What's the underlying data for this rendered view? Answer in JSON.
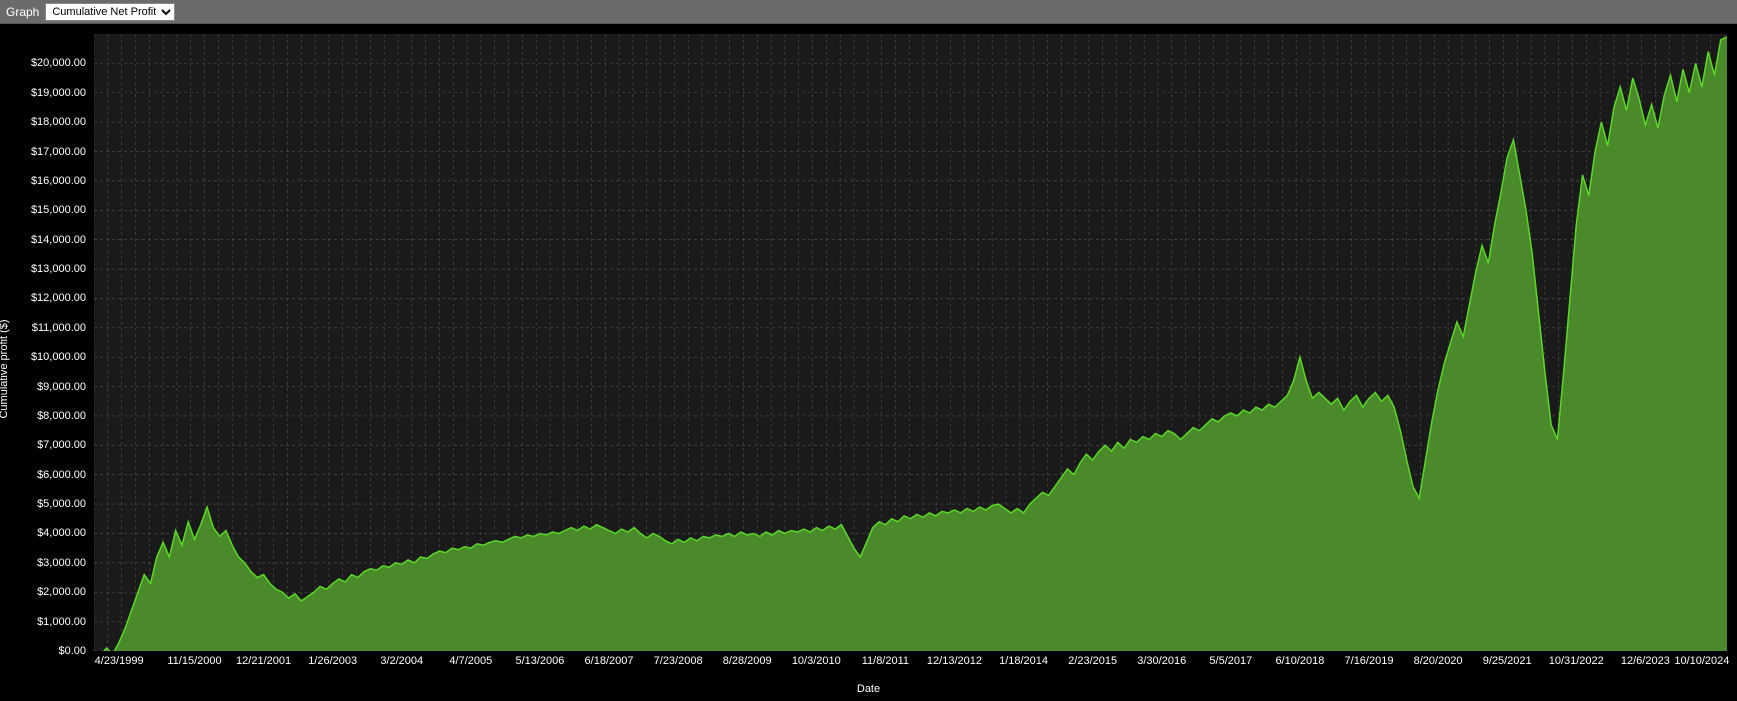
{
  "toolbar": {
    "label": "Graph",
    "dropdown_selected": "Cumulative Net Profit",
    "dropdown_options": [
      "Cumulative Net Profit"
    ]
  },
  "chart": {
    "type": "area",
    "y_axis_title": "Cumulative profit ($)",
    "x_axis_title": "Date",
    "background_color": "#1a1a1a",
    "plot_panel_color": "#000000",
    "grid_color": "#505050",
    "grid_dash": "3,3",
    "line_color": "#59d826",
    "line_width": 1.5,
    "fill_color": "#4a8a2a",
    "fill_opacity": 1.0,
    "text_color": "#ffffff",
    "label_fontsize": 11,
    "y_min": 0,
    "y_max": 21000,
    "y_ticks": [
      {
        "v": 0,
        "label": "$0.00"
      },
      {
        "v": 1000,
        "label": "$1,000.00"
      },
      {
        "v": 2000,
        "label": "$2,000.00"
      },
      {
        "v": 3000,
        "label": "$3,000.00"
      },
      {
        "v": 4000,
        "label": "$4,000.00"
      },
      {
        "v": 5000,
        "label": "$5,000.00"
      },
      {
        "v": 6000,
        "label": "$6,000.00"
      },
      {
        "v": 7000,
        "label": "$7,000.00"
      },
      {
        "v": 8000,
        "label": "$8,000.00"
      },
      {
        "v": 9000,
        "label": "$9,000.00"
      },
      {
        "v": 10000,
        "label": "$10,000.00"
      },
      {
        "v": 11000,
        "label": "$11,000.00"
      },
      {
        "v": 12000,
        "label": "$12,000.00"
      },
      {
        "v": 13000,
        "label": "$13,000.00"
      },
      {
        "v": 14000,
        "label": "$14,000.00"
      },
      {
        "v": 15000,
        "label": "$15,000.00"
      },
      {
        "v": 16000,
        "label": "$16,000.00"
      },
      {
        "v": 17000,
        "label": "$17,000.00"
      },
      {
        "v": 18000,
        "label": "$18,000.00"
      },
      {
        "v": 19000,
        "label": "$19,000.00"
      },
      {
        "v": 20000,
        "label": "$20,000.00"
      }
    ],
    "x_min": 0,
    "x_max": 260,
    "x_ticks": [
      {
        "v": 4,
        "label": "4/23/1999"
      },
      {
        "v": 16,
        "label": "11/15/2000"
      },
      {
        "v": 27,
        "label": "12/21/2001"
      },
      {
        "v": 38,
        "label": "1/26/2003"
      },
      {
        "v": 49,
        "label": "3/2/2004"
      },
      {
        "v": 60,
        "label": "4/7/2005"
      },
      {
        "v": 71,
        "label": "5/13/2006"
      },
      {
        "v": 82,
        "label": "6/18/2007"
      },
      {
        "v": 93,
        "label": "7/23/2008"
      },
      {
        "v": 104,
        "label": "8/28/2009"
      },
      {
        "v": 115,
        "label": "10/3/2010"
      },
      {
        "v": 126,
        "label": "11/8/2011"
      },
      {
        "v": 137,
        "label": "12/13/2012"
      },
      {
        "v": 148,
        "label": "1/18/2014"
      },
      {
        "v": 159,
        "label": "2/23/2015"
      },
      {
        "v": 170,
        "label": "3/30/2016"
      },
      {
        "v": 181,
        "label": "5/5/2017"
      },
      {
        "v": 192,
        "label": "6/10/2018"
      },
      {
        "v": 203,
        "label": "7/16/2019"
      },
      {
        "v": 214,
        "label": "8/20/2020"
      },
      {
        "v": 225,
        "label": "9/25/2021"
      },
      {
        "v": 236,
        "label": "10/31/2022"
      },
      {
        "v": 247,
        "label": "12/6/2023"
      },
      {
        "v": 256,
        "label": "10/10/2024"
      }
    ],
    "x_grid_minor_step": 2.2,
    "series": [
      {
        "x": 0,
        "y": 0
      },
      {
        "x": 1,
        "y": -150
      },
      {
        "x": 2,
        "y": 100
      },
      {
        "x": 3,
        "y": -100
      },
      {
        "x": 4,
        "y": 300
      },
      {
        "x": 5,
        "y": 800
      },
      {
        "x": 6,
        "y": 1400
      },
      {
        "x": 7,
        "y": 2000
      },
      {
        "x": 8,
        "y": 2600
      },
      {
        "x": 9,
        "y": 2300
      },
      {
        "x": 10,
        "y": 3200
      },
      {
        "x": 11,
        "y": 3700
      },
      {
        "x": 12,
        "y": 3200
      },
      {
        "x": 13,
        "y": 4100
      },
      {
        "x": 14,
        "y": 3600
      },
      {
        "x": 15,
        "y": 4400
      },
      {
        "x": 16,
        "y": 3800
      },
      {
        "x": 17,
        "y": 4300
      },
      {
        "x": 18,
        "y": 4900
      },
      {
        "x": 19,
        "y": 4200
      },
      {
        "x": 20,
        "y": 3900
      },
      {
        "x": 21,
        "y": 4100
      },
      {
        "x": 22,
        "y": 3600
      },
      {
        "x": 23,
        "y": 3200
      },
      {
        "x": 24,
        "y": 3000
      },
      {
        "x": 25,
        "y": 2700
      },
      {
        "x": 26,
        "y": 2500
      },
      {
        "x": 27,
        "y": 2600
      },
      {
        "x": 28,
        "y": 2300
      },
      {
        "x": 29,
        "y": 2100
      },
      {
        "x": 30,
        "y": 2000
      },
      {
        "x": 31,
        "y": 1800
      },
      {
        "x": 32,
        "y": 1950
      },
      {
        "x": 33,
        "y": 1700
      },
      {
        "x": 34,
        "y": 1850
      },
      {
        "x": 35,
        "y": 2000
      },
      {
        "x": 36,
        "y": 2200
      },
      {
        "x": 37,
        "y": 2100
      },
      {
        "x": 38,
        "y": 2300
      },
      {
        "x": 39,
        "y": 2450
      },
      {
        "x": 40,
        "y": 2350
      },
      {
        "x": 41,
        "y": 2600
      },
      {
        "x": 42,
        "y": 2500
      },
      {
        "x": 43,
        "y": 2700
      },
      {
        "x": 44,
        "y": 2800
      },
      {
        "x": 45,
        "y": 2750
      },
      {
        "x": 46,
        "y": 2900
      },
      {
        "x": 47,
        "y": 2850
      },
      {
        "x": 48,
        "y": 3000
      },
      {
        "x": 49,
        "y": 2950
      },
      {
        "x": 50,
        "y": 3100
      },
      {
        "x": 51,
        "y": 3000
      },
      {
        "x": 52,
        "y": 3200
      },
      {
        "x": 53,
        "y": 3150
      },
      {
        "x": 54,
        "y": 3300
      },
      {
        "x": 55,
        "y": 3400
      },
      {
        "x": 56,
        "y": 3350
      },
      {
        "x": 57,
        "y": 3500
      },
      {
        "x": 58,
        "y": 3450
      },
      {
        "x": 59,
        "y": 3550
      },
      {
        "x": 60,
        "y": 3500
      },
      {
        "x": 61,
        "y": 3650
      },
      {
        "x": 62,
        "y": 3600
      },
      {
        "x": 63,
        "y": 3700
      },
      {
        "x": 64,
        "y": 3750
      },
      {
        "x": 65,
        "y": 3700
      },
      {
        "x": 66,
        "y": 3800
      },
      {
        "x": 67,
        "y": 3900
      },
      {
        "x": 68,
        "y": 3850
      },
      {
        "x": 69,
        "y": 3950
      },
      {
        "x": 70,
        "y": 3900
      },
      {
        "x": 71,
        "y": 4000
      },
      {
        "x": 72,
        "y": 3950
      },
      {
        "x": 73,
        "y": 4050
      },
      {
        "x": 74,
        "y": 4000
      },
      {
        "x": 75,
        "y": 4100
      },
      {
        "x": 76,
        "y": 4200
      },
      {
        "x": 77,
        "y": 4100
      },
      {
        "x": 78,
        "y": 4250
      },
      {
        "x": 79,
        "y": 4150
      },
      {
        "x": 80,
        "y": 4300
      },
      {
        "x": 81,
        "y": 4200
      },
      {
        "x": 82,
        "y": 4100
      },
      {
        "x": 83,
        "y": 4000
      },
      {
        "x": 84,
        "y": 4150
      },
      {
        "x": 85,
        "y": 4050
      },
      {
        "x": 86,
        "y": 4200
      },
      {
        "x": 87,
        "y": 4000
      },
      {
        "x": 88,
        "y": 3850
      },
      {
        "x": 89,
        "y": 4000
      },
      {
        "x": 90,
        "y": 3900
      },
      {
        "x": 91,
        "y": 3750
      },
      {
        "x": 92,
        "y": 3650
      },
      {
        "x": 93,
        "y": 3800
      },
      {
        "x": 94,
        "y": 3700
      },
      {
        "x": 95,
        "y": 3850
      },
      {
        "x": 96,
        "y": 3750
      },
      {
        "x": 97,
        "y": 3900
      },
      {
        "x": 98,
        "y": 3850
      },
      {
        "x": 99,
        "y": 3950
      },
      {
        "x": 100,
        "y": 3900
      },
      {
        "x": 101,
        "y": 4000
      },
      {
        "x": 102,
        "y": 3900
      },
      {
        "x": 103,
        "y": 4050
      },
      {
        "x": 104,
        "y": 3950
      },
      {
        "x": 105,
        "y": 4000
      },
      {
        "x": 106,
        "y": 3900
      },
      {
        "x": 107,
        "y": 4050
      },
      {
        "x": 108,
        "y": 3950
      },
      {
        "x": 109,
        "y": 4100
      },
      {
        "x": 110,
        "y": 4000
      },
      {
        "x": 111,
        "y": 4100
      },
      {
        "x": 112,
        "y": 4050
      },
      {
        "x": 113,
        "y": 4150
      },
      {
        "x": 114,
        "y": 4050
      },
      {
        "x": 115,
        "y": 4200
      },
      {
        "x": 116,
        "y": 4100
      },
      {
        "x": 117,
        "y": 4250
      },
      {
        "x": 118,
        "y": 4150
      },
      {
        "x": 119,
        "y": 4300
      },
      {
        "x": 120,
        "y": 3900
      },
      {
        "x": 121,
        "y": 3500
      },
      {
        "x": 122,
        "y": 3200
      },
      {
        "x": 123,
        "y": 3700
      },
      {
        "x": 124,
        "y": 4200
      },
      {
        "x": 125,
        "y": 4400
      },
      {
        "x": 126,
        "y": 4300
      },
      {
        "x": 127,
        "y": 4500
      },
      {
        "x": 128,
        "y": 4400
      },
      {
        "x": 129,
        "y": 4600
      },
      {
        "x": 130,
        "y": 4500
      },
      {
        "x": 131,
        "y": 4650
      },
      {
        "x": 132,
        "y": 4550
      },
      {
        "x": 133,
        "y": 4700
      },
      {
        "x": 134,
        "y": 4600
      },
      {
        "x": 135,
        "y": 4750
      },
      {
        "x": 136,
        "y": 4700
      },
      {
        "x": 137,
        "y": 4800
      },
      {
        "x": 138,
        "y": 4700
      },
      {
        "x": 139,
        "y": 4850
      },
      {
        "x": 140,
        "y": 4750
      },
      {
        "x": 141,
        "y": 4900
      },
      {
        "x": 142,
        "y": 4800
      },
      {
        "x": 143,
        "y": 4950
      },
      {
        "x": 144,
        "y": 5000
      },
      {
        "x": 145,
        "y": 4850
      },
      {
        "x": 146,
        "y": 4700
      },
      {
        "x": 147,
        "y": 4850
      },
      {
        "x": 148,
        "y": 4700
      },
      {
        "x": 149,
        "y": 5000
      },
      {
        "x": 150,
        "y": 5200
      },
      {
        "x": 151,
        "y": 5400
      },
      {
        "x": 152,
        "y": 5300
      },
      {
        "x": 153,
        "y": 5600
      },
      {
        "x": 154,
        "y": 5900
      },
      {
        "x": 155,
        "y": 6200
      },
      {
        "x": 156,
        "y": 6000
      },
      {
        "x": 157,
        "y": 6400
      },
      {
        "x": 158,
        "y": 6700
      },
      {
        "x": 159,
        "y": 6500
      },
      {
        "x": 160,
        "y": 6800
      },
      {
        "x": 161,
        "y": 7000
      },
      {
        "x": 162,
        "y": 6800
      },
      {
        "x": 163,
        "y": 7100
      },
      {
        "x": 164,
        "y": 6900
      },
      {
        "x": 165,
        "y": 7200
      },
      {
        "x": 166,
        "y": 7100
      },
      {
        "x": 167,
        "y": 7300
      },
      {
        "x": 168,
        "y": 7200
      },
      {
        "x": 169,
        "y": 7400
      },
      {
        "x": 170,
        "y": 7300
      },
      {
        "x": 171,
        "y": 7500
      },
      {
        "x": 172,
        "y": 7400
      },
      {
        "x": 173,
        "y": 7200
      },
      {
        "x": 174,
        "y": 7400
      },
      {
        "x": 175,
        "y": 7600
      },
      {
        "x": 176,
        "y": 7500
      },
      {
        "x": 177,
        "y": 7700
      },
      {
        "x": 178,
        "y": 7900
      },
      {
        "x": 179,
        "y": 7800
      },
      {
        "x": 180,
        "y": 8000
      },
      {
        "x": 181,
        "y": 8100
      },
      {
        "x": 182,
        "y": 8000
      },
      {
        "x": 183,
        "y": 8200
      },
      {
        "x": 184,
        "y": 8100
      },
      {
        "x": 185,
        "y": 8300
      },
      {
        "x": 186,
        "y": 8200
      },
      {
        "x": 187,
        "y": 8400
      },
      {
        "x": 188,
        "y": 8300
      },
      {
        "x": 189,
        "y": 8500
      },
      {
        "x": 190,
        "y": 8700
      },
      {
        "x": 191,
        "y": 9200
      },
      {
        "x": 192,
        "y": 10000
      },
      {
        "x": 193,
        "y": 9200
      },
      {
        "x": 194,
        "y": 8600
      },
      {
        "x": 195,
        "y": 8800
      },
      {
        "x": 196,
        "y": 8600
      },
      {
        "x": 197,
        "y": 8400
      },
      {
        "x": 198,
        "y": 8600
      },
      {
        "x": 199,
        "y": 8200
      },
      {
        "x": 200,
        "y": 8500
      },
      {
        "x": 201,
        "y": 8700
      },
      {
        "x": 202,
        "y": 8300
      },
      {
        "x": 203,
        "y": 8600
      },
      {
        "x": 204,
        "y": 8800
      },
      {
        "x": 205,
        "y": 8500
      },
      {
        "x": 206,
        "y": 8700
      },
      {
        "x": 207,
        "y": 8300
      },
      {
        "x": 208,
        "y": 7500
      },
      {
        "x": 209,
        "y": 6500
      },
      {
        "x": 210,
        "y": 5600
      },
      {
        "x": 211,
        "y": 5200
      },
      {
        "x": 212,
        "y": 6500
      },
      {
        "x": 213,
        "y": 7800
      },
      {
        "x": 214,
        "y": 8900
      },
      {
        "x": 215,
        "y": 9800
      },
      {
        "x": 216,
        "y": 10500
      },
      {
        "x": 217,
        "y": 11200
      },
      {
        "x": 218,
        "y": 10700
      },
      {
        "x": 219,
        "y": 11800
      },
      {
        "x": 220,
        "y": 12900
      },
      {
        "x": 221,
        "y": 13800
      },
      {
        "x": 222,
        "y": 13200
      },
      {
        "x": 223,
        "y": 14500
      },
      {
        "x": 224,
        "y": 15600
      },
      {
        "x": 225,
        "y": 16800
      },
      {
        "x": 226,
        "y": 17400
      },
      {
        "x": 227,
        "y": 16200
      },
      {
        "x": 228,
        "y": 15000
      },
      {
        "x": 229,
        "y": 13500
      },
      {
        "x": 230,
        "y": 11500
      },
      {
        "x": 231,
        "y": 9500
      },
      {
        "x": 232,
        "y": 7700
      },
      {
        "x": 233,
        "y": 7200
      },
      {
        "x": 234,
        "y": 9500
      },
      {
        "x": 235,
        "y": 12000
      },
      {
        "x": 236,
        "y": 14500
      },
      {
        "x": 237,
        "y": 16200
      },
      {
        "x": 238,
        "y": 15500
      },
      {
        "x": 239,
        "y": 17000
      },
      {
        "x": 240,
        "y": 18000
      },
      {
        "x": 241,
        "y": 17200
      },
      {
        "x": 242,
        "y": 18500
      },
      {
        "x": 243,
        "y": 19200
      },
      {
        "x": 244,
        "y": 18400
      },
      {
        "x": 245,
        "y": 19500
      },
      {
        "x": 246,
        "y": 18800
      },
      {
        "x": 247,
        "y": 17900
      },
      {
        "x": 248,
        "y": 18600
      },
      {
        "x": 249,
        "y": 17800
      },
      {
        "x": 250,
        "y": 18900
      },
      {
        "x": 251,
        "y": 19600
      },
      {
        "x": 252,
        "y": 18700
      },
      {
        "x": 253,
        "y": 19800
      },
      {
        "x": 254,
        "y": 19000
      },
      {
        "x": 255,
        "y": 20000
      },
      {
        "x": 256,
        "y": 19200
      },
      {
        "x": 257,
        "y": 20400
      },
      {
        "x": 258,
        "y": 19600
      },
      {
        "x": 259,
        "y": 20800
      },
      {
        "x": 260,
        "y": 20900
      }
    ]
  }
}
